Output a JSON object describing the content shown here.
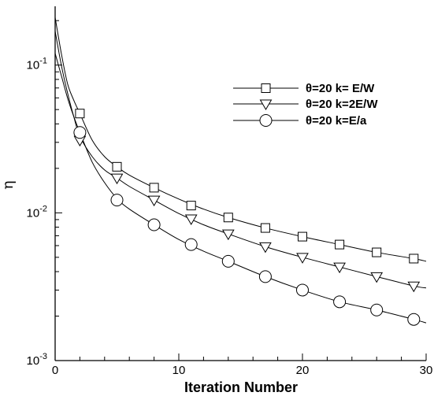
{
  "chart_data": {
    "type": "line",
    "title": "",
    "xlabel": "Iteration Number",
    "ylabel": "η",
    "xlim": [
      0,
      30
    ],
    "ylim": [
      0.001,
      0.25
    ],
    "yscale": "log",
    "grid": false,
    "legend_position": "top-right",
    "x_ticks": [
      0,
      10,
      20,
      30
    ],
    "y_ticks": [
      {
        "value": 0.001,
        "base": "10",
        "exp": "-3"
      },
      {
        "value": 0.01,
        "base": "10",
        "exp": "-2"
      },
      {
        "value": 0.1,
        "base": "10",
        "exp": "-1"
      }
    ],
    "series": [
      {
        "name": "θ=20 k= E/W",
        "marker": "square",
        "curve_x": [
          0,
          0.5,
          1,
          1.5,
          2,
          3,
          4,
          5,
          6,
          8,
          10,
          12,
          14,
          17,
          20,
          23,
          26,
          29,
          30
        ],
        "curve_y": [
          0.21,
          0.12,
          0.075,
          0.058,
          0.047,
          0.031,
          0.024,
          0.0205,
          0.018,
          0.0148,
          0.0124,
          0.0106,
          0.0093,
          0.0079,
          0.0069,
          0.0061,
          0.0054,
          0.0049,
          0.0047
        ],
        "marker_x": [
          2,
          5,
          8,
          11,
          14,
          17,
          20,
          23,
          26,
          29
        ],
        "marker_y": [
          0.047,
          0.0205,
          0.0148,
          0.0112,
          0.0093,
          0.0079,
          0.0069,
          0.0061,
          0.0054,
          0.0049
        ]
      },
      {
        "name": "θ=20 k=2E/W",
        "marker": "triangle-down",
        "curve_x": [
          0,
          0.5,
          1,
          1.5,
          2,
          3,
          4,
          5,
          6,
          8,
          10,
          12,
          14,
          17,
          20,
          23,
          26,
          29,
          30
        ],
        "curve_y": [
          0.17,
          0.1,
          0.065,
          0.045,
          0.033,
          0.024,
          0.0195,
          0.0172,
          0.0151,
          0.0122,
          0.0099,
          0.0083,
          0.0072,
          0.0059,
          0.005,
          0.0043,
          0.0037,
          0.0032,
          0.0031
        ],
        "marker_x": [
          2,
          5,
          8,
          11,
          14,
          17,
          20,
          23,
          26,
          29
        ],
        "marker_y": [
          0.031,
          0.0172,
          0.0122,
          0.0091,
          0.0072,
          0.0059,
          0.005,
          0.0043,
          0.0037,
          0.0032
        ]
      },
      {
        "name": "θ=20 k=E/a",
        "marker": "circle",
        "curve_x": [
          0,
          0.5,
          1,
          1.5,
          2,
          3,
          4,
          5,
          6,
          8,
          10,
          12,
          14,
          17,
          20,
          23,
          26,
          29,
          30
        ],
        "curve_y": [
          0.12,
          0.085,
          0.06,
          0.045,
          0.035,
          0.022,
          0.016,
          0.0125,
          0.0106,
          0.0083,
          0.0066,
          0.0055,
          0.0047,
          0.0037,
          0.003,
          0.0025,
          0.0022,
          0.0019,
          0.0018
        ],
        "marker_x": [
          2,
          5,
          8,
          11,
          14,
          17,
          20,
          23,
          26,
          29
        ],
        "marker_y": [
          0.035,
          0.0122,
          0.0083,
          0.0061,
          0.0047,
          0.0037,
          0.003,
          0.0025,
          0.0022,
          0.0019
        ]
      }
    ]
  }
}
